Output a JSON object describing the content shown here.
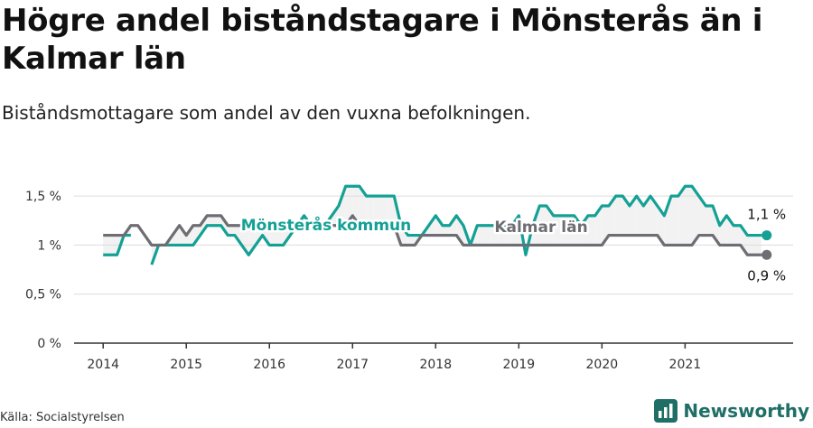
{
  "title": "Högre andel biståndstagare i Mönsterås än i Kalmar län",
  "subtitle": "Biståndsmottagare som andel av den vuxna befolkningen.",
  "source": "Källa: Socialstyrelsen",
  "brand": {
    "name": "Newsworthy",
    "icon": "newsworthy-logo-icon"
  },
  "colors": {
    "municipality": "#14a195",
    "county": "#6d6d73",
    "grid": "#dcdcdc",
    "band": "#f2f2f2"
  },
  "chart_data": {
    "type": "line",
    "title": "Högre andel biståndstagare i Mönsterås än i Kalmar län",
    "subtitle": "Biståndsmottagare som andel av den vuxna befolkningen.",
    "ylim": [
      0,
      1.75
    ],
    "yticks": [
      0,
      0.5,
      1,
      1.5
    ],
    "ytick_labels": [
      "0 %",
      "0,5 %",
      "1 %",
      "1,5 %"
    ],
    "xticks": [
      2014,
      2015,
      2016,
      2017,
      2018,
      2019,
      2020,
      2021
    ],
    "xtick_labels": [
      "2014",
      "2015",
      "2016",
      "2017",
      "2018",
      "2019",
      "2020",
      "2021"
    ],
    "grid": true,
    "series": [
      {
        "name": "Mönsterås kommun",
        "color": "#14a195",
        "end_label": "1,1 %",
        "x": [
          2014.0,
          2014.083,
          2014.167,
          2014.25,
          2014.333,
          2014.417,
          2014.5,
          2014.583,
          2014.667,
          2014.75,
          2014.833,
          2014.917,
          2015.0,
          2015.083,
          2015.167,
          2015.25,
          2015.333,
          2015.417,
          2015.5,
          2015.583,
          2015.667,
          2015.75,
          2015.833,
          2015.917,
          2016.0,
          2016.083,
          2016.167,
          2016.25,
          2016.333,
          2016.417,
          2016.5,
          2016.583,
          2016.667,
          2016.75,
          2016.833,
          2016.917,
          2017.0,
          2017.083,
          2017.167,
          2017.25,
          2017.333,
          2017.417,
          2017.5,
          2017.583,
          2017.667,
          2017.75,
          2017.833,
          2017.917,
          2018.0,
          2018.083,
          2018.167,
          2018.25,
          2018.333,
          2018.417,
          2018.5,
          2018.583,
          2018.667,
          2018.75,
          2018.833,
          2018.917,
          2019.0,
          2019.083,
          2019.167,
          2019.25,
          2019.333,
          2019.417,
          2019.5,
          2019.583,
          2019.667,
          2019.75,
          2019.833,
          2019.917,
          2020.0,
          2020.083,
          2020.167,
          2020.25,
          2020.333,
          2020.417,
          2020.5,
          2020.583,
          2020.667,
          2020.75,
          2020.833,
          2020.917,
          2021.0,
          2021.083,
          2021.167,
          2021.25,
          2021.333,
          2021.417,
          2021.5,
          2021.583,
          2021.667,
          2021.75,
          2021.833,
          2021.917
        ],
        "y": [
          0.9,
          0.9,
          0.9,
          1.1,
          1.1,
          null,
          null,
          0.8,
          1.0,
          1.0,
          1.0,
          1.0,
          1.0,
          1.0,
          1.1,
          1.2,
          1.2,
          1.2,
          1.1,
          1.1,
          1.0,
          0.9,
          1.0,
          1.1,
          1.0,
          1.0,
          1.0,
          1.1,
          1.2,
          1.3,
          1.2,
          1.2,
          1.2,
          1.3,
          1.4,
          1.6,
          1.6,
          1.6,
          1.5,
          1.5,
          1.5,
          1.5,
          1.5,
          1.2,
          1.1,
          1.1,
          1.1,
          1.2,
          1.3,
          1.2,
          1.2,
          1.3,
          1.2,
          1.0,
          1.2,
          1.2,
          1.2,
          1.2,
          1.2,
          1.2,
          1.3,
          0.9,
          1.2,
          1.4,
          1.4,
          1.3,
          1.3,
          1.3,
          1.3,
          1.2,
          1.3,
          1.3,
          1.4,
          1.4,
          1.5,
          1.5,
          1.4,
          1.5,
          1.4,
          1.5,
          1.4,
          1.3,
          1.5,
          1.5,
          1.6,
          1.6,
          1.5,
          1.4,
          1.4,
          1.2,
          1.3,
          1.2,
          1.2,
          1.1,
          1.1,
          1.1
        ]
      },
      {
        "name": "Kalmar län",
        "color": "#6d6d73",
        "end_label": "0,9 %",
        "x": [
          2014.0,
          2014.083,
          2014.167,
          2014.25,
          2014.333,
          2014.417,
          2014.5,
          2014.583,
          2014.667,
          2014.75,
          2014.833,
          2014.917,
          2015.0,
          2015.083,
          2015.167,
          2015.25,
          2015.333,
          2015.417,
          2015.5,
          2015.583,
          2015.667,
          2015.75,
          2015.833,
          2015.917,
          2016.0,
          2016.083,
          2016.167,
          2016.25,
          2016.333,
          2016.417,
          2016.5,
          2016.583,
          2016.667,
          2016.75,
          2016.833,
          2016.917,
          2017.0,
          2017.083,
          2017.167,
          2017.25,
          2017.333,
          2017.417,
          2017.5,
          2017.583,
          2017.667,
          2017.75,
          2017.833,
          2017.917,
          2018.0,
          2018.083,
          2018.167,
          2018.25,
          2018.333,
          2018.417,
          2018.5,
          2018.583,
          2018.667,
          2018.75,
          2018.833,
          2018.917,
          2019.0,
          2019.083,
          2019.167,
          2019.25,
          2019.333,
          2019.417,
          2019.5,
          2019.583,
          2019.667,
          2019.75,
          2019.833,
          2019.917,
          2020.0,
          2020.083,
          2020.167,
          2020.25,
          2020.333,
          2020.417,
          2020.5,
          2020.583,
          2020.667,
          2020.75,
          2020.833,
          2020.917,
          2021.0,
          2021.083,
          2021.167,
          2021.25,
          2021.333,
          2021.417,
          2021.5,
          2021.583,
          2021.667,
          2021.75,
          2021.833,
          2021.917
        ],
        "y": [
          1.1,
          1.1,
          1.1,
          1.1,
          1.2,
          1.2,
          1.1,
          1.0,
          1.0,
          1.0,
          1.1,
          1.2,
          1.1,
          1.2,
          1.2,
          1.3,
          1.3,
          1.3,
          1.2,
          1.2,
          1.2,
          1.2,
          1.2,
          1.2,
          1.2,
          1.2,
          1.2,
          1.2,
          1.2,
          1.2,
          1.2,
          1.2,
          1.2,
          1.2,
          1.2,
          1.2,
          1.3,
          1.2,
          1.2,
          1.2,
          1.2,
          1.2,
          1.2,
          1.0,
          1.0,
          1.0,
          1.1,
          1.1,
          1.1,
          1.1,
          1.1,
          1.1,
          1.0,
          1.0,
          1.0,
          1.0,
          1.0,
          1.0,
          1.0,
          1.0,
          1.0,
          1.0,
          1.0,
          1.0,
          1.0,
          1.0,
          1.0,
          1.0,
          1.0,
          1.0,
          1.0,
          1.0,
          1.0,
          1.1,
          1.1,
          1.1,
          1.1,
          1.1,
          1.1,
          1.1,
          1.1,
          1.0,
          1.0,
          1.0,
          1.0,
          1.0,
          1.1,
          1.1,
          1.1,
          1.0,
          1.0,
          1.0,
          1.0,
          0.9,
          0.9,
          0.9
        ]
      }
    ],
    "annotations": [
      {
        "text": "Mönsterås kommun",
        "series": "Mönsterås kommun"
      },
      {
        "text": "Kalmar län",
        "series": "Kalmar län"
      }
    ]
  }
}
